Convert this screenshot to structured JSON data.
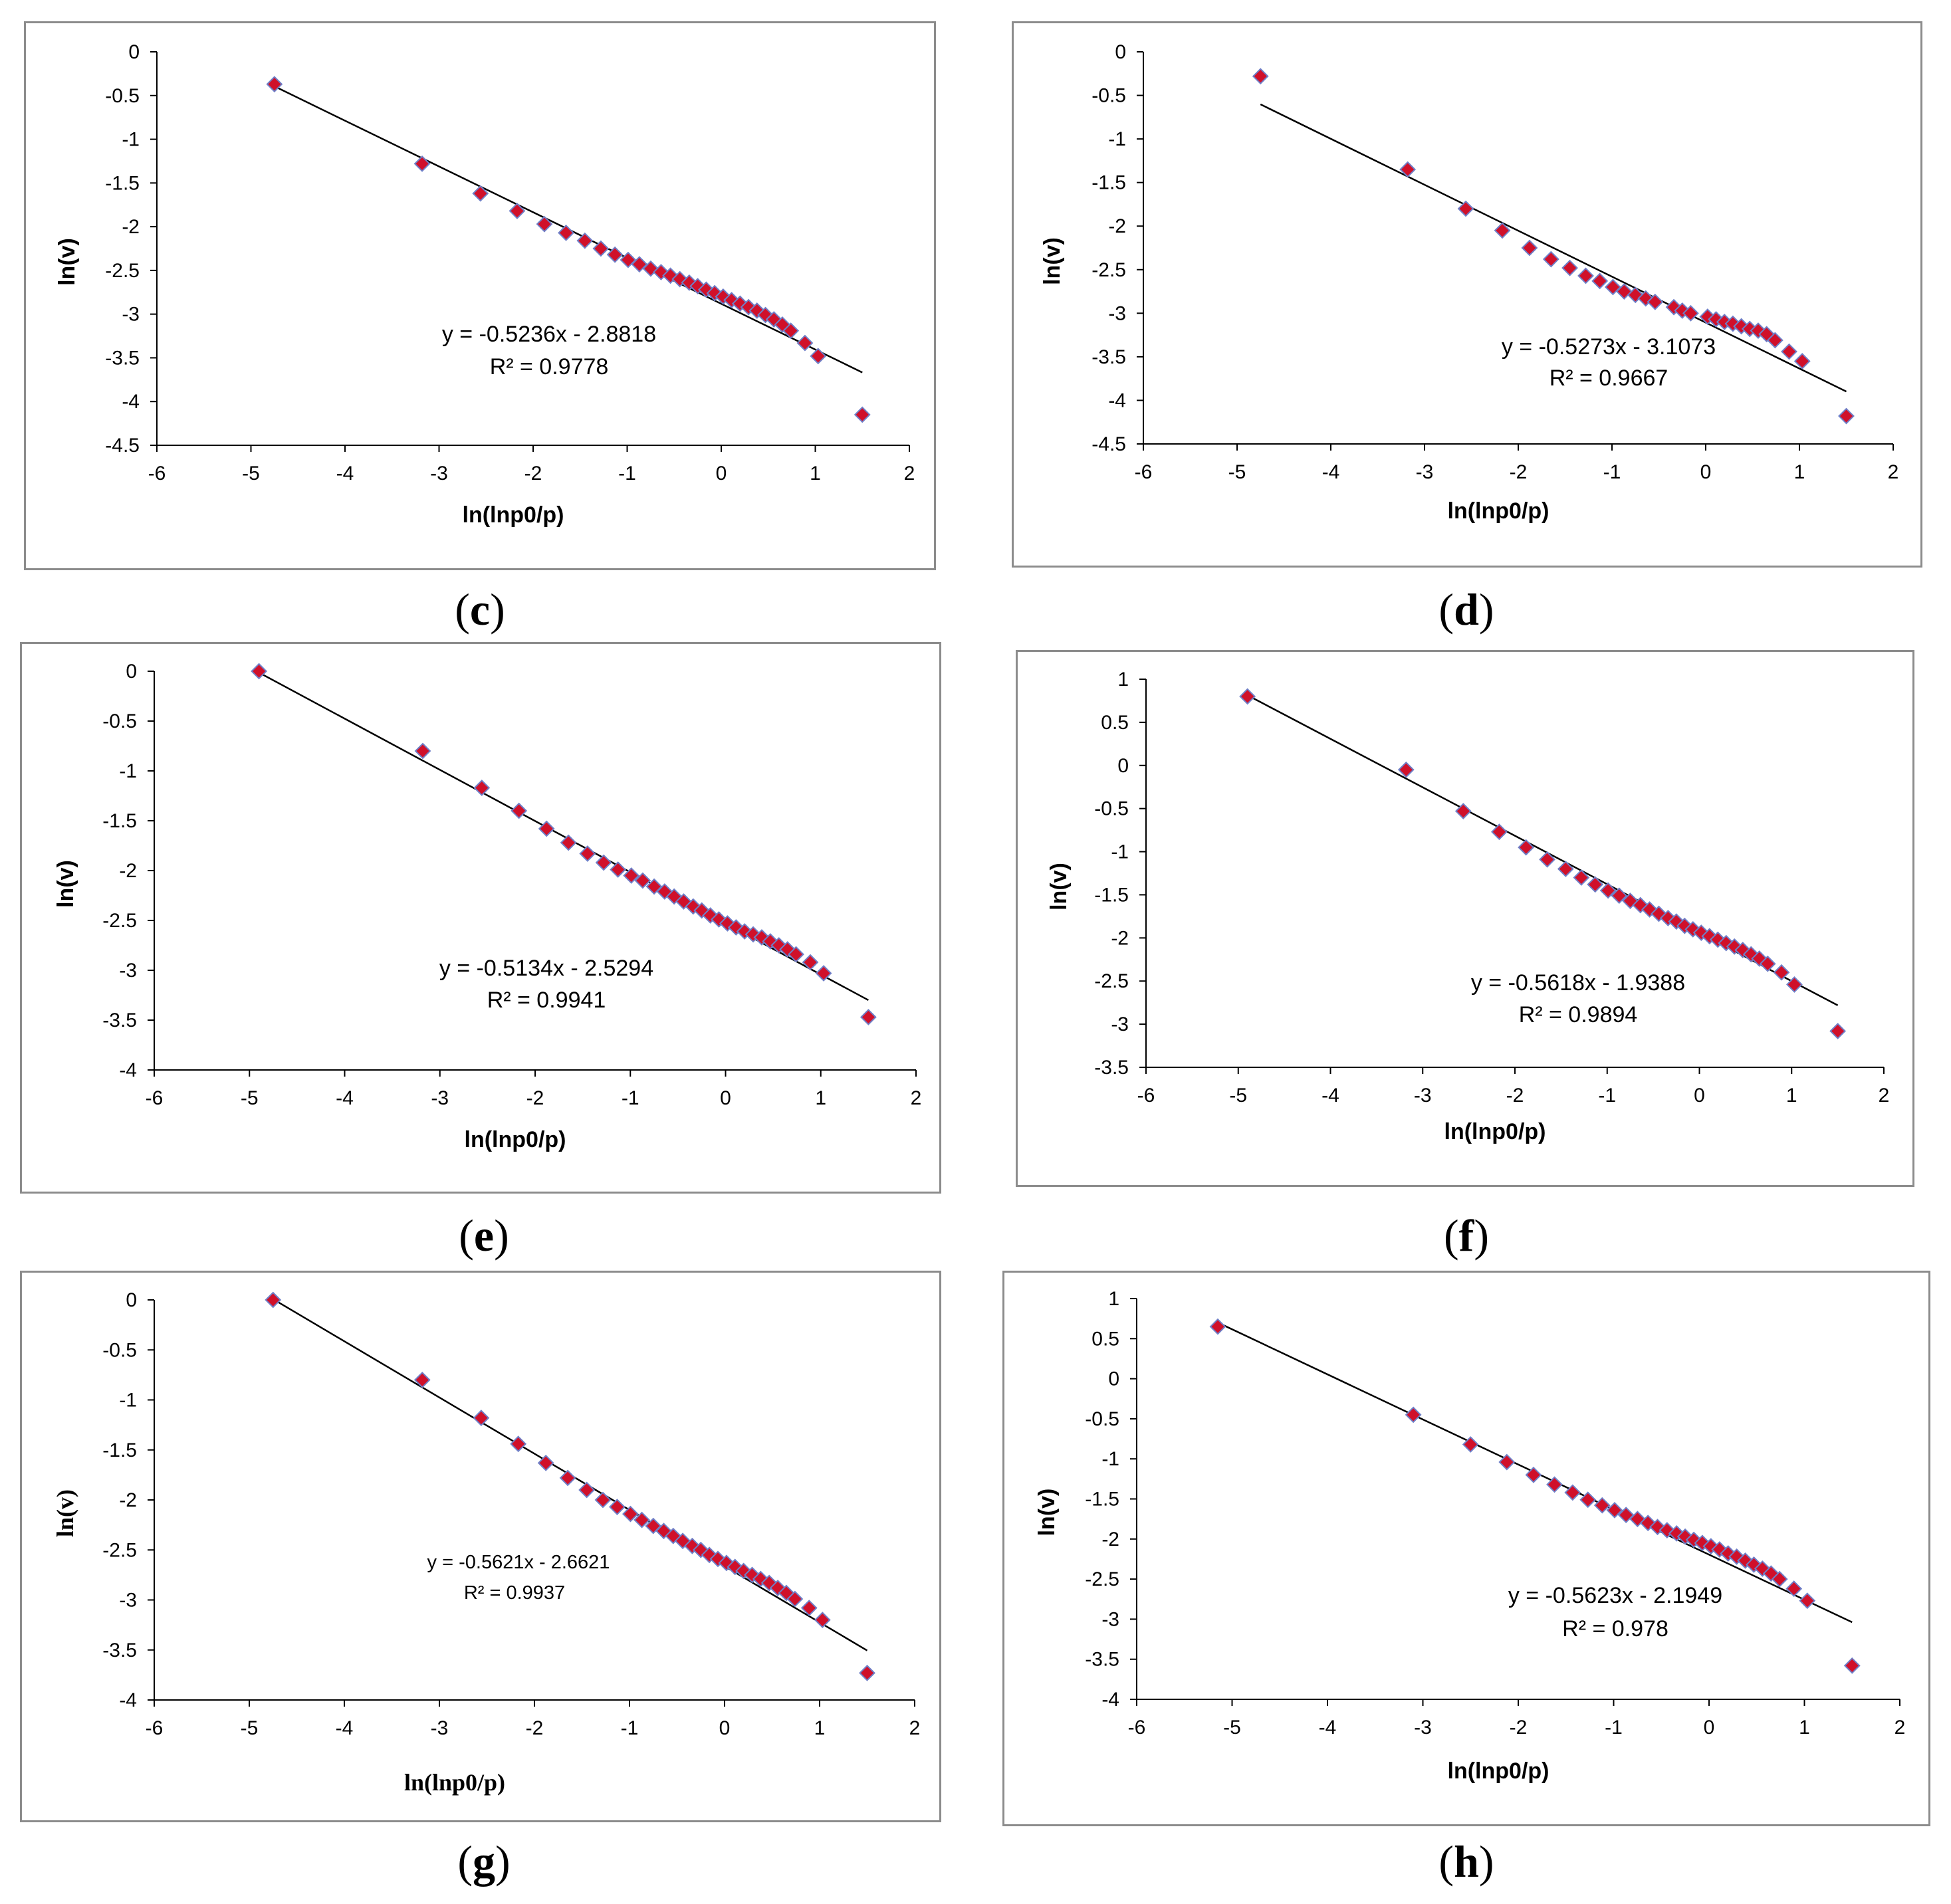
{
  "figure": {
    "background": "#ffffff",
    "marker_fill": "#d0102a",
    "marker_stroke": "#6f7fc7",
    "line_color": "#000000",
    "frame_color": "#8c8c8c"
  },
  "panels": [
    {
      "id": "c",
      "label_open": "(",
      "label": "c",
      "label_close": ")"
    },
    {
      "id": "d",
      "label_open": "(",
      "label": "d",
      "label_close": ")"
    },
    {
      "id": "e",
      "label_open": "(",
      "label": "e",
      "label_close": ")"
    },
    {
      "id": "f",
      "label_open": "(",
      "label": "f",
      "label_close": ")"
    },
    {
      "id": "g",
      "label_open": "(",
      "label": "g",
      "label_close": ")"
    },
    {
      "id": "h",
      "label_open": "(",
      "label": "h",
      "label_close": ")"
    }
  ],
  "chart_data": [
    {
      "panel": "c",
      "type": "scatter",
      "xlabel": "ln(lnp0/p)",
      "ylabel": "ln(v)",
      "xlim": [
        -6,
        2
      ],
      "ylim": [
        -4.5,
        0
      ],
      "xticks": [
        "-6",
        "-5",
        "-4",
        "-3",
        "-2",
        "-1",
        "0",
        "1",
        "2"
      ],
      "yticks": [
        "0",
        "-0.5",
        "-1",
        "-1.5",
        "-2",
        "-2.5",
        "-3",
        "-3.5",
        "-4",
        "-4.5"
      ],
      "equation": "y = -0.5236x - 2.8818",
      "r2_label": "R² = 0.9778",
      "trendline": {
        "slope": -0.5236,
        "intercept": -2.8818,
        "x_range": [
          -4.75,
          1.5
        ]
      },
      "x": [
        -4.75,
        -3.18,
        -2.56,
        -2.17,
        -1.88,
        -1.65,
        -1.45,
        -1.28,
        -1.13,
        -0.99,
        -0.87,
        -0.75,
        -0.64,
        -0.54,
        -0.44,
        -0.34,
        -0.25,
        -0.16,
        -0.07,
        0.02,
        0.11,
        0.2,
        0.29,
        0.38,
        0.47,
        0.56,
        0.65,
        0.74,
        0.89,
        1.03,
        1.5
      ],
      "y": [
        -0.37,
        -1.28,
        -1.62,
        -1.82,
        -1.97,
        -2.07,
        -2.16,
        -2.25,
        -2.32,
        -2.38,
        -2.43,
        -2.48,
        -2.52,
        -2.56,
        -2.6,
        -2.64,
        -2.68,
        -2.72,
        -2.76,
        -2.8,
        -2.84,
        -2.88,
        -2.92,
        -2.96,
        -3.01,
        -3.06,
        -3.12,
        -3.19,
        -3.33,
        -3.48,
        -4.15
      ]
    },
    {
      "panel": "d",
      "type": "scatter",
      "xlabel": "ln(lnp0/p)",
      "ylabel": "ln(v)",
      "xlim": [
        -6,
        2
      ],
      "ylim": [
        -4.5,
        0
      ],
      "xticks": [
        "-6",
        "-5",
        "-4",
        "-3",
        "-2",
        "-1",
        "0",
        "1",
        "2"
      ],
      "yticks": [
        "0",
        "-0.5",
        "-1",
        "-1.5",
        "-2",
        "-2.5",
        "-3",
        "-3.5",
        "-4",
        "-4.5"
      ],
      "equation": "y = -0.5273x - 3.1073",
      "r2_label": "R² = 0.9667",
      "trendline": {
        "slope": -0.5273,
        "intercept": -3.1073,
        "x_range": [
          -4.75,
          1.5
        ]
      },
      "x": [
        -4.75,
        -3.18,
        -2.56,
        -2.17,
        -1.88,
        -1.65,
        -1.45,
        -1.28,
        -1.13,
        -0.99,
        -0.87,
        -0.75,
        -0.64,
        -0.54,
        -0.34,
        -0.25,
        -0.16,
        0.02,
        0.11,
        0.2,
        0.29,
        0.38,
        0.47,
        0.56,
        0.65,
        0.74,
        0.89,
        1.03,
        1.5
      ],
      "y": [
        -0.28,
        -1.35,
        -1.8,
        -2.05,
        -2.25,
        -2.38,
        -2.48,
        -2.57,
        -2.63,
        -2.7,
        -2.75,
        -2.79,
        -2.83,
        -2.87,
        -2.93,
        -2.97,
        -3.0,
        -3.04,
        -3.07,
        -3.1,
        -3.12,
        -3.15,
        -3.18,
        -3.2,
        -3.24,
        -3.31,
        -3.44,
        -3.55,
        -4.18
      ]
    },
    {
      "panel": "e",
      "type": "scatter",
      "xlabel": "ln(lnp0/p)",
      "ylabel": "ln(v)",
      "xlim": [
        -6,
        2
      ],
      "ylim": [
        -4,
        0
      ],
      "xticks": [
        "-6",
        "-5",
        "-4",
        "-3",
        "-2",
        "-1",
        "0",
        "1",
        "2"
      ],
      "yticks": [
        "0",
        "-0.5",
        "-1",
        "-1.5",
        "-2",
        "-2.5",
        "-3",
        "-3.5",
        "-4"
      ],
      "equation": "y = -0.5134x - 2.5294",
      "r2_label": "R² = 0.9941",
      "trendline": {
        "slope": -0.5134,
        "intercept": -2.5294,
        "x_range": [
          -4.9,
          1.5
        ]
      },
      "x": [
        -4.9,
        -3.18,
        -2.56,
        -2.17,
        -1.88,
        -1.65,
        -1.45,
        -1.28,
        -1.13,
        -0.99,
        -0.87,
        -0.75,
        -0.64,
        -0.54,
        -0.44,
        -0.34,
        -0.25,
        -0.16,
        -0.07,
        0.02,
        0.11,
        0.2,
        0.29,
        0.38,
        0.47,
        0.56,
        0.65,
        0.74,
        0.89,
        1.03,
        1.5
      ],
      "y": [
        0.0,
        -0.8,
        -1.17,
        -1.4,
        -1.58,
        -1.72,
        -1.83,
        -1.92,
        -1.99,
        -2.05,
        -2.1,
        -2.16,
        -2.21,
        -2.26,
        -2.31,
        -2.36,
        -2.4,
        -2.45,
        -2.49,
        -2.53,
        -2.57,
        -2.61,
        -2.64,
        -2.67,
        -2.71,
        -2.75,
        -2.79,
        -2.84,
        -2.92,
        -3.03,
        -3.47
      ]
    },
    {
      "panel": "f",
      "type": "scatter",
      "xlabel": "ln(lnp0/p)",
      "ylabel": "ln(v)",
      "xlim": [
        -6,
        2
      ],
      "ylim": [
        -3.5,
        1
      ],
      "xticks": [
        "-6",
        "-5",
        "-4",
        "-3",
        "-2",
        "-1",
        "0",
        "1",
        "2"
      ],
      "yticks": [
        "1",
        "0.5",
        "0",
        "-0.5",
        "-1",
        "-1.5",
        "-2",
        "-2.5",
        "-3",
        "-3.5"
      ],
      "equation": "y = -0.5618x - 1.9388",
      "r2_label": "R² = 0.9894",
      "trendline": {
        "slope": -0.5618,
        "intercept": -1.9388,
        "x_range": [
          -4.9,
          1.5
        ]
      },
      "x": [
        -4.9,
        -3.18,
        -2.56,
        -2.17,
        -1.88,
        -1.65,
        -1.45,
        -1.28,
        -1.13,
        -0.99,
        -0.87,
        -0.75,
        -0.64,
        -0.54,
        -0.44,
        -0.34,
        -0.25,
        -0.16,
        -0.07,
        0.02,
        0.11,
        0.2,
        0.29,
        0.38,
        0.47,
        0.56,
        0.65,
        0.74,
        0.89,
        1.03,
        1.5
      ],
      "y": [
        0.8,
        -0.05,
        -0.53,
        -0.77,
        -0.95,
        -1.09,
        -1.2,
        -1.3,
        -1.38,
        -1.45,
        -1.51,
        -1.57,
        -1.62,
        -1.67,
        -1.72,
        -1.77,
        -1.81,
        -1.86,
        -1.9,
        -1.94,
        -1.98,
        -2.02,
        -2.06,
        -2.1,
        -2.14,
        -2.19,
        -2.24,
        -2.3,
        -2.4,
        -2.54,
        -3.08
      ]
    },
    {
      "panel": "g",
      "type": "scatter",
      "xlabel": "ln(lnp0/p)",
      "ylabel": "ln(v)",
      "xlim": [
        -6,
        2
      ],
      "ylim": [
        -4,
        0
      ],
      "xticks": [
        "-6",
        "-5",
        "-4",
        "-3",
        "-2",
        "-1",
        "0",
        "1",
        "2"
      ],
      "yticks": [
        "0",
        "-0.5",
        "-1",
        "-1.5",
        "-2",
        "-2.5",
        "-3",
        "-3.5",
        "-4"
      ],
      "equation": "y = -0.5621x - 2.6621",
      "r2_label": "R² = 0.9937",
      "trendline": {
        "slope": -0.5621,
        "intercept": -2.6621,
        "x_range": [
          -4.75,
          1.5
        ]
      },
      "x": [
        -4.75,
        -3.18,
        -2.56,
        -2.17,
        -1.88,
        -1.65,
        -1.45,
        -1.28,
        -1.13,
        -0.99,
        -0.87,
        -0.75,
        -0.64,
        -0.54,
        -0.44,
        -0.34,
        -0.25,
        -0.16,
        -0.07,
        0.02,
        0.11,
        0.2,
        0.29,
        0.38,
        0.47,
        0.56,
        0.65,
        0.74,
        0.89,
        1.03,
        1.5
      ],
      "y": [
        0.0,
        -0.8,
        -1.18,
        -1.44,
        -1.63,
        -1.78,
        -1.9,
        -2.0,
        -2.07,
        -2.14,
        -2.2,
        -2.26,
        -2.31,
        -2.36,
        -2.41,
        -2.46,
        -2.5,
        -2.55,
        -2.59,
        -2.63,
        -2.67,
        -2.71,
        -2.75,
        -2.79,
        -2.83,
        -2.88,
        -2.93,
        -2.99,
        -3.08,
        -3.2,
        -3.73
      ]
    },
    {
      "panel": "h",
      "type": "scatter",
      "xlabel": "ln(lnp0/p)",
      "ylabel": "ln(v)",
      "xlim": [
        -6,
        2
      ],
      "ylim": [
        -4,
        1
      ],
      "xticks": [
        "-6",
        "-5",
        "-4",
        "-3",
        "-2",
        "-1",
        "0",
        "1",
        "2"
      ],
      "yticks": [
        "1",
        "0.5",
        "0",
        "-0.5",
        "-1",
        "-1.5",
        "-2",
        "-2.5",
        "-3",
        "-3.5",
        "-4"
      ],
      "equation": "y = -0.5623x - 2.1949",
      "r2_label": "R² = 0.978",
      "trendline": {
        "slope": -0.5623,
        "intercept": -2.1949,
        "x_range": [
          -5.15,
          1.5
        ]
      },
      "x": [
        -5.15,
        -3.1,
        -2.5,
        -2.12,
        -1.84,
        -1.62,
        -1.43,
        -1.27,
        -1.12,
        -0.99,
        -0.87,
        -0.75,
        -0.64,
        -0.54,
        -0.44,
        -0.34,
        -0.25,
        -0.16,
        -0.07,
        0.02,
        0.11,
        0.2,
        0.29,
        0.38,
        0.47,
        0.56,
        0.65,
        0.74,
        0.89,
        1.03,
        1.5
      ],
      "y": [
        0.65,
        -0.45,
        -0.82,
        -1.04,
        -1.2,
        -1.32,
        -1.42,
        -1.51,
        -1.58,
        -1.64,
        -1.7,
        -1.75,
        -1.8,
        -1.85,
        -1.89,
        -1.93,
        -1.97,
        -2.01,
        -2.05,
        -2.09,
        -2.13,
        -2.18,
        -2.22,
        -2.27,
        -2.32,
        -2.37,
        -2.43,
        -2.5,
        -2.62,
        -2.77,
        -3.58
      ]
    }
  ]
}
